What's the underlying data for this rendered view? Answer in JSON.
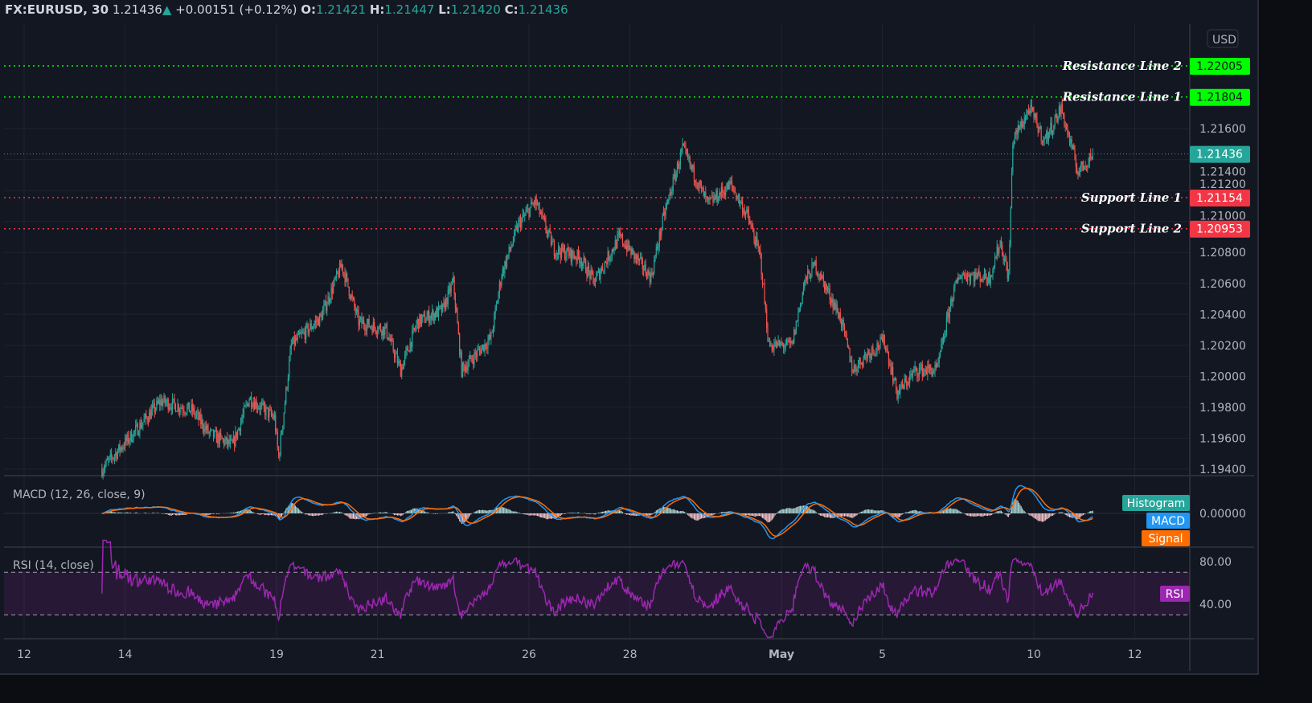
{
  "header": {
    "symbol": "FX:EURUSD, 30",
    "last": "1.21436",
    "change": "+0.00151 (+0.12%)",
    "o_label": "O:",
    "o": "1.21421",
    "h_label": "H:",
    "h": "1.21447",
    "l_label": "L:",
    "l": "1.21420",
    "c_label": "C:",
    "c": "1.21436",
    "direction_icon": "triangle-up-icon"
  },
  "colors": {
    "up": "#26a69a",
    "down": "#ef5350",
    "resistance": "#00ff00",
    "support": "#f23645",
    "macd": "#2196f3",
    "signal": "#ff6d00",
    "rsi": "#9c27b0",
    "background": "#131722"
  },
  "currency": "USD",
  "levels": [
    {
      "label": "Resistance Line 2",
      "value": "1.22005",
      "type": "resistance"
    },
    {
      "label": "Resistance Line 1",
      "value": "1.21804",
      "type": "resistance"
    },
    {
      "label": "Support Line 1",
      "value": "1.21154",
      "type": "support"
    },
    {
      "label": "Support Line 2",
      "value": "1.20953",
      "type": "support"
    }
  ],
  "last_price_tag": "1.21436",
  "indicators": {
    "macd": {
      "title": "MACD (12, 26, close, 9)",
      "tags": [
        "Histogram",
        "MACD",
        "Signal"
      ],
      "axis": [
        "0.00000"
      ]
    },
    "rsi": {
      "title": "RSI (14, close)",
      "tag": "RSI",
      "axis": [
        "80.00",
        "40.00"
      ],
      "band": [
        30,
        70
      ]
    }
  },
  "chart_data": {
    "type": "candlestick",
    "interval": "30",
    "y_ticks": [
      "1.21600",
      "1.21400",
      "1.21200",
      "1.21000",
      "1.20800",
      "1.20600",
      "1.20400",
      "1.20200",
      "1.20000",
      "1.19800",
      "1.19600",
      "1.19400"
    ],
    "x_ticks": [
      "12",
      "14",
      "19",
      "21",
      "26",
      "28",
      "May",
      "5",
      "10",
      "12"
    ],
    "ylim": [
      1.193,
      1.223
    ],
    "price_path": [
      [
        "Apr 13 13:00",
        1.194
      ],
      [
        "Apr 14 07:00",
        1.1968
      ],
      [
        "Apr 14 17:00",
        1.1984
      ],
      [
        "Apr 15 08:00",
        1.1978
      ],
      [
        "Apr 15 16:00",
        1.1963
      ],
      [
        "Apr 16 03:00",
        1.1955
      ],
      [
        "Apr 16 11:00",
        1.1986
      ],
      [
        "Apr 16 23:00",
        1.1973
      ],
      [
        "Apr 19 01:00",
        1.1947
      ],
      [
        "Apr 19 07:00",
        1.202
      ],
      [
        "Apr 19 21:00",
        1.2038
      ],
      [
        "Apr 20 07:00",
        1.2072
      ],
      [
        "Apr 20 15:00",
        1.2035
      ],
      [
        "Apr 21 04:00",
        1.203
      ],
      [
        "Apr 21 11:00",
        1.2004
      ],
      [
        "Apr 21 19:00",
        1.2035
      ],
      [
        "Apr 22 07:00",
        1.2043
      ],
      [
        "Apr 22 12:00",
        1.2061
      ],
      [
        "Apr 22 16:00",
        1.2004
      ],
      [
        "Apr 23 06:00",
        1.2025
      ],
      [
        "Apr 23 11:00",
        1.2066
      ],
      [
        "Apr 23 19:00",
        1.2098
      ],
      [
        "Apr 26 03:00",
        1.2113
      ],
      [
        "Apr 26 12:00",
        1.2082
      ],
      [
        "Apr 27 00:00",
        1.2077
      ],
      [
        "Apr 27 07:00",
        1.2061
      ],
      [
        "Apr 27 19:00",
        1.209
      ],
      [
        "Apr 28 10:00",
        1.2064
      ],
      [
        "Apr 28 16:00",
        1.2103
      ],
      [
        "Apr 29 01:00",
        1.2147
      ],
      [
        "Apr 29 13:00",
        1.2111
      ],
      [
        "Apr 30 00:00",
        1.2124
      ],
      [
        "Apr 30 08:00",
        1.2103
      ],
      [
        "Apr 30 14:00",
        1.2077
      ],
      [
        "Apr 30 18:00",
        1.202
      ],
      [
        "May 3 05:00",
        1.202
      ],
      [
        "May 3 11:00",
        1.2061
      ],
      [
        "May 3 16:00",
        1.2072
      ],
      [
        "May 4 04:00",
        1.2038
      ],
      [
        "May 4 10:00",
        1.2004
      ],
      [
        "May 4 17:00",
        1.2015
      ],
      [
        "May 5 01:00",
        1.2023
      ],
      [
        "May 5 07:00",
        1.1989
      ],
      [
        "May 5 16:00",
        1.2004
      ],
      [
        "May 6 02:00",
        1.2004
      ],
      [
        "May 6 09:00",
        1.2051
      ],
      [
        "May 6 13:00",
        1.2066
      ],
      [
        "May 7 03:00",
        1.2064
      ],
      [
        "May 7 08:00",
        1.2087
      ],
      [
        "May 7 12:00",
        1.2064
      ],
      [
        "May 7 14:00",
        1.2152
      ],
      [
        "May 7 22:00",
        1.2173
      ],
      [
        "May 10 05:00",
        1.2152
      ],
      [
        "May 10 13:00",
        1.2173
      ],
      [
        "May 10 21:00",
        1.2132
      ],
      [
        "May 11 04:00",
        1.21436
      ]
    ]
  }
}
